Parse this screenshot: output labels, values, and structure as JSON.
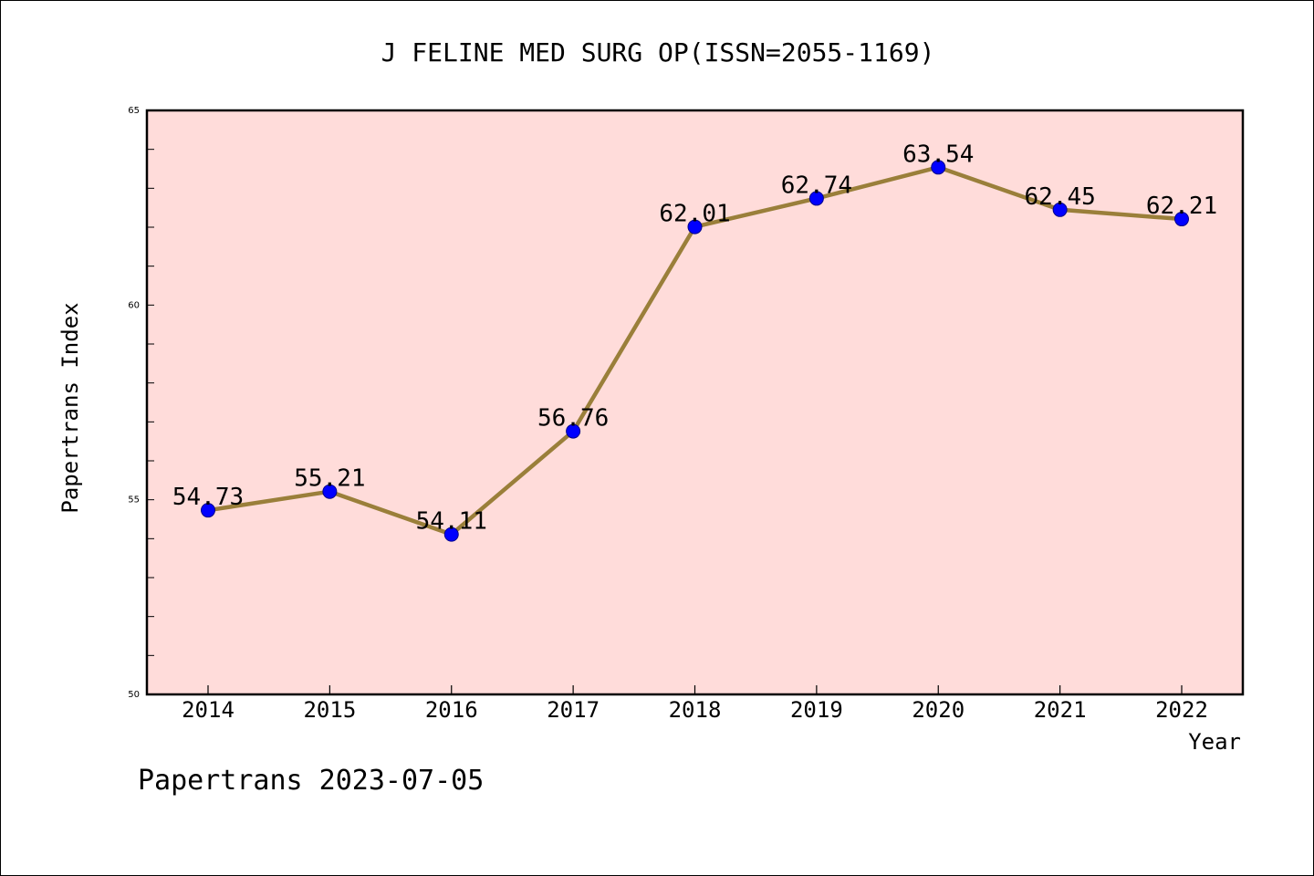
{
  "chart_data": {
    "type": "line",
    "title": "J FELINE MED SURG OP(ISSN=2055-1169)",
    "xlabel": "Year",
    "ylabel": "Papertrans Index",
    "categories": [
      "2014",
      "2015",
      "2016",
      "2017",
      "2018",
      "2019",
      "2020",
      "2021",
      "2022"
    ],
    "series": [
      {
        "values": [
          54.73,
          55.21,
          54.11,
          56.76,
          62.01,
          62.74,
          63.54,
          62.45,
          62.21
        ],
        "data_labels": [
          "54.73",
          "55.21",
          "54.11",
          "56.76",
          "62.01",
          "62.74",
          "63.54",
          "62.45",
          "62.21"
        ]
      }
    ],
    "ylim": [
      50,
      65
    ],
    "y_ticks": [
      "50",
      "55",
      "60",
      "65"
    ],
    "y_minor_step": 1,
    "grid": false,
    "colors": {
      "plot_background": "#FFDCDA",
      "line": "#9A7F3A",
      "marker": "#0000FF",
      "axis": "#000000"
    }
  },
  "footer": {
    "text": "Papertrans 2023-07-05"
  }
}
